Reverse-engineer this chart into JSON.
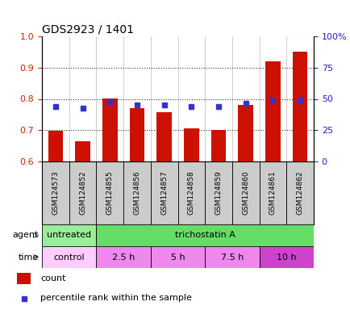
{
  "title": "GDS2923 / 1401",
  "samples": [
    "GSM124573",
    "GSM124852",
    "GSM124855",
    "GSM124856",
    "GSM124857",
    "GSM124858",
    "GSM124859",
    "GSM124860",
    "GSM124861",
    "GSM124862"
  ],
  "count_values": [
    0.698,
    0.665,
    0.8,
    0.77,
    0.758,
    0.707,
    0.7,
    0.78,
    0.92,
    0.95
  ],
  "percentile_values": [
    0.775,
    0.77,
    0.79,
    0.78,
    0.78,
    0.775,
    0.775,
    0.785,
    0.795,
    0.796
  ],
  "ylim_left": [
    0.6,
    1.0
  ],
  "ylim_right": [
    0,
    100
  ],
  "yticks_left": [
    0.6,
    0.7,
    0.8,
    0.9,
    1.0
  ],
  "yticks_right": [
    0,
    25,
    50,
    75,
    100
  ],
  "ytick_labels_right": [
    "0",
    "25",
    "50",
    "75",
    "100%"
  ],
  "bar_color": "#cc1100",
  "dot_color": "#3333cc",
  "agent_items": [
    {
      "label": "untreated",
      "start": 0,
      "end": 2,
      "color": "#99ee99"
    },
    {
      "label": "trichostatin A",
      "start": 2,
      "end": 10,
      "color": "#66dd66"
    }
  ],
  "time_items": [
    {
      "label": "control",
      "start": 0,
      "end": 2,
      "color": "#ffccff"
    },
    {
      "label": "2.5 h",
      "start": 2,
      "end": 4,
      "color": "#ee88ee"
    },
    {
      "label": "5 h",
      "start": 4,
      "end": 6,
      "color": "#ee88ee"
    },
    {
      "label": "7.5 h",
      "start": 6,
      "end": 8,
      "color": "#ee88ee"
    },
    {
      "label": "10 h",
      "start": 8,
      "end": 10,
      "color": "#cc44cc"
    }
  ],
  "legend_count_label": "count",
  "legend_percentile_label": "percentile rank within the sample",
  "background_color": "#ffffff",
  "tick_color_left": "#cc2200",
  "tick_color_right": "#2222cc",
  "xtick_bg_color": "#cccccc",
  "grid_dotted_color": "#333333"
}
